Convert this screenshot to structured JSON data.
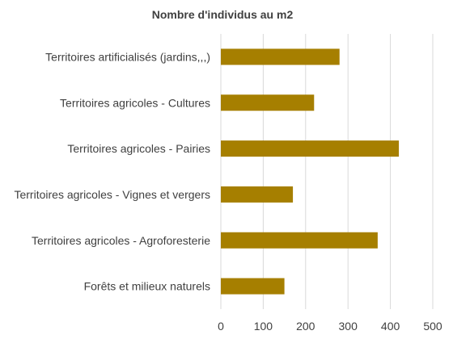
{
  "chart_data": {
    "type": "bar",
    "orientation": "horizontal",
    "title": "Nombre d'individus au m2",
    "categories": [
      "Territoires artificialisés (jardins,,,)",
      "Territoires agricoles - Cultures",
      "Territoires agricoles - Pairies",
      "Territoires agricoles - Vignes et vergers",
      "Territoires agricoles - Agroforesterie",
      "Forêts et milieux naturels"
    ],
    "values": [
      280,
      220,
      420,
      170,
      370,
      150
    ],
    "xlim": [
      0,
      500
    ],
    "xticks": [
      "0",
      "100",
      "200",
      "300",
      "400",
      "500"
    ],
    "bar_color": "#a67f00",
    "grid": "vertical",
    "legend": "none"
  }
}
